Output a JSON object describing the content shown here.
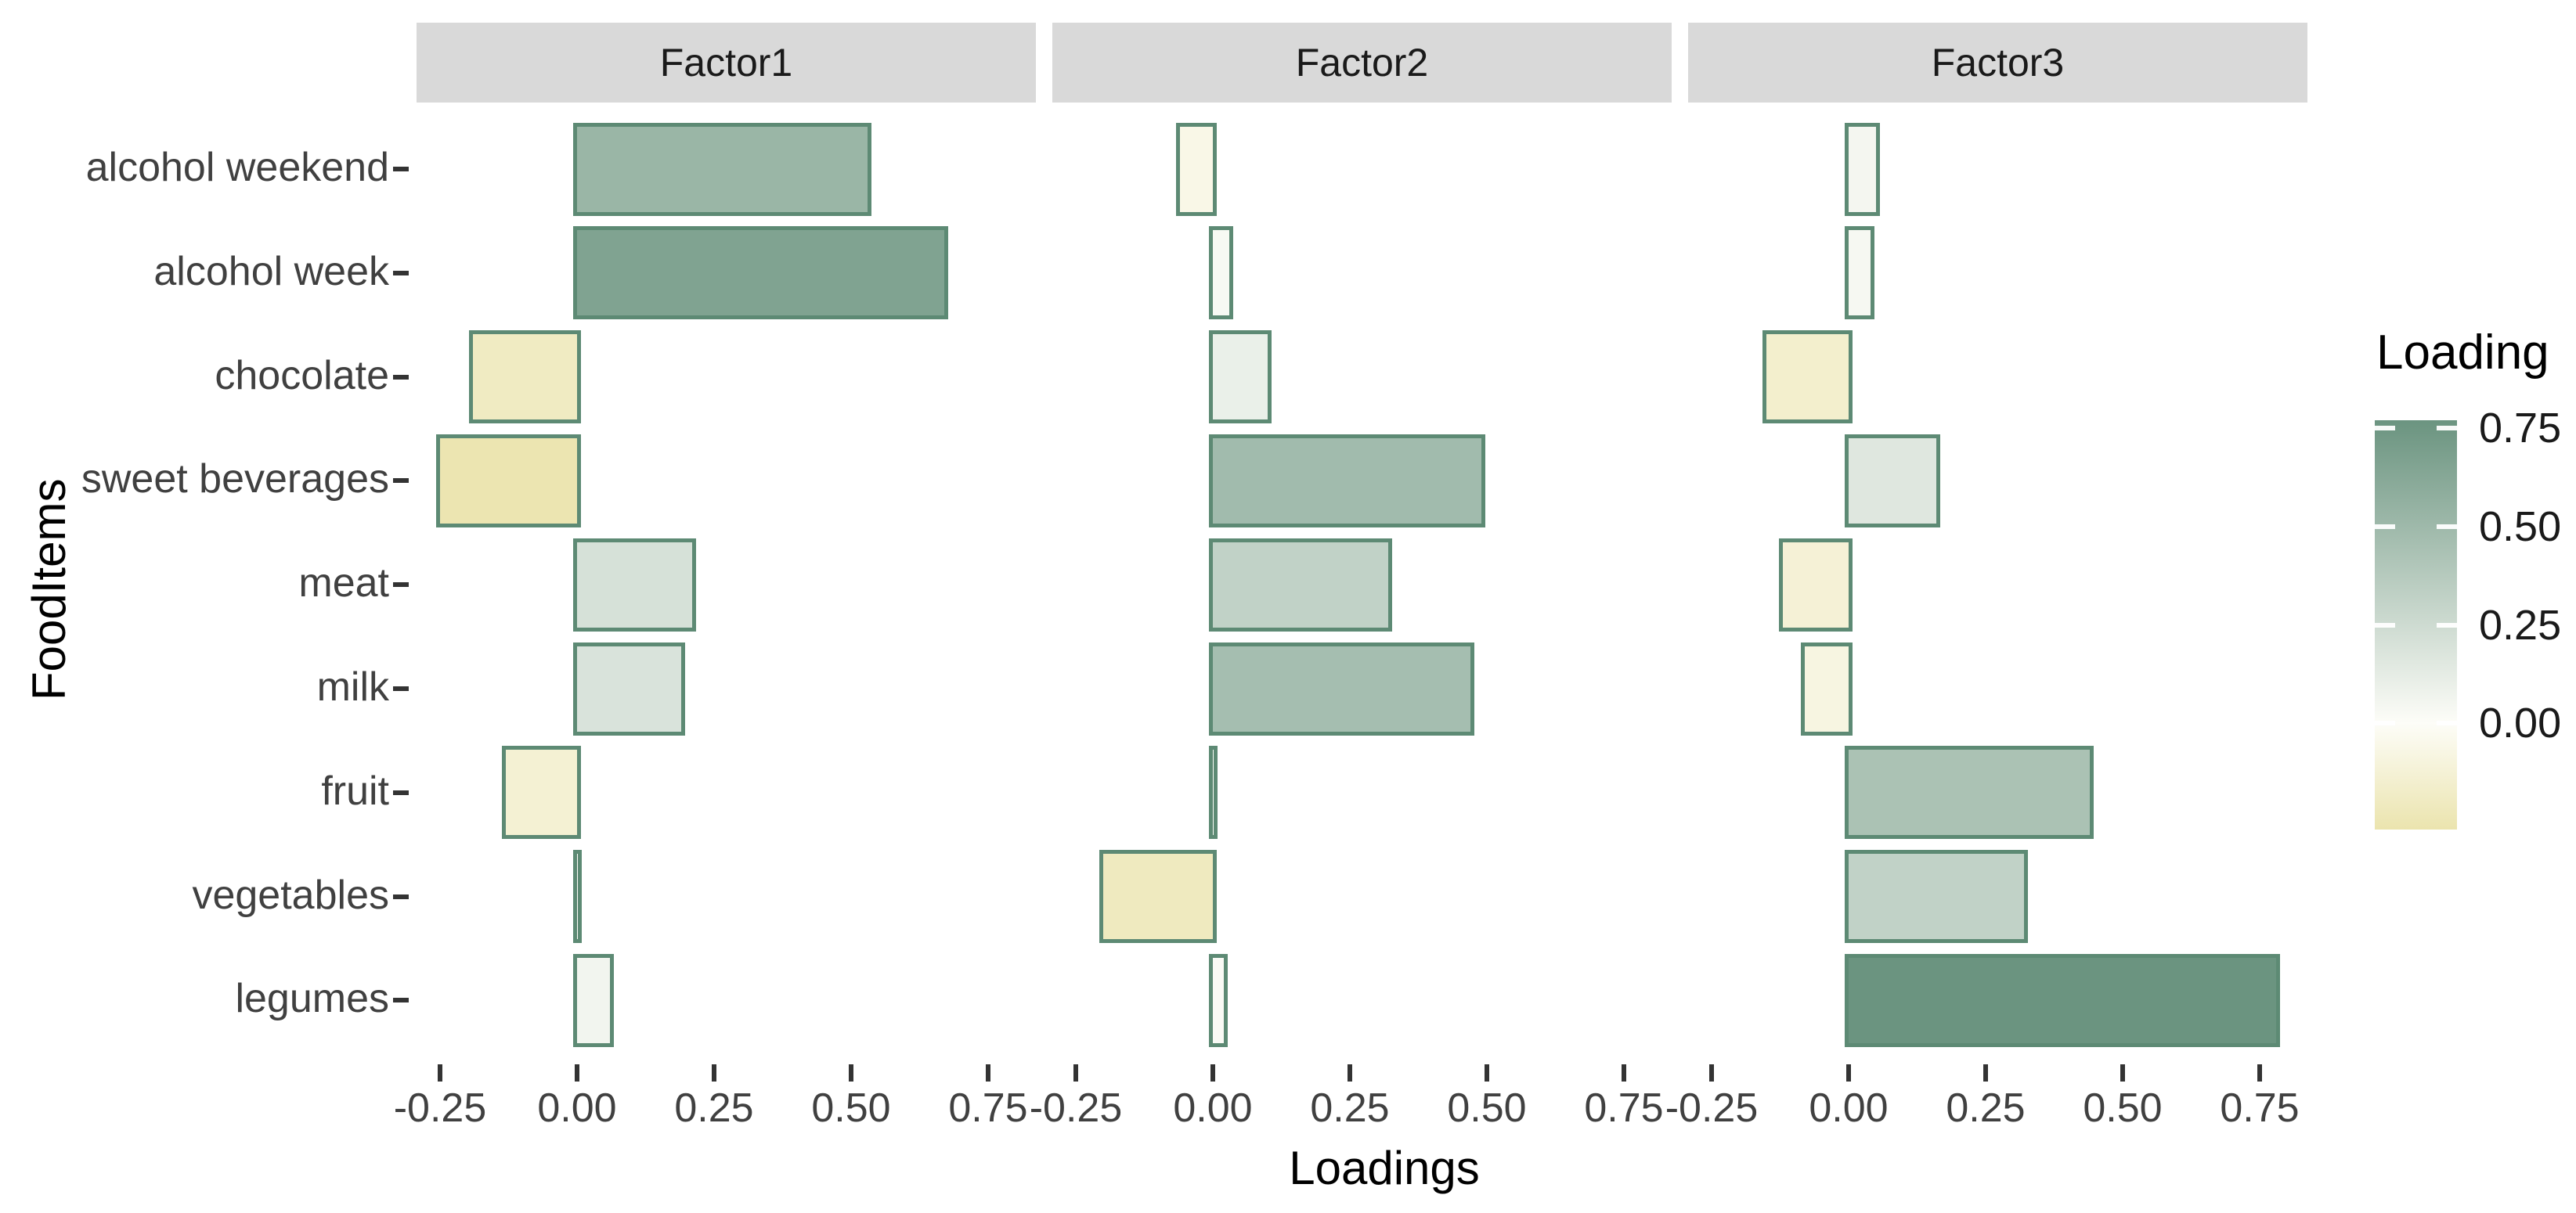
{
  "chart_data": {
    "type": "bar",
    "orientation": "horizontal",
    "title": "",
    "xlabel": "Loadings",
    "ylabel": "FoodItems",
    "legend_title": "Loading",
    "legend_position": "right",
    "grid": false,
    "facets": [
      "Factor1",
      "Factor2",
      "Factor3"
    ],
    "categories": [
      "alcohol weekend",
      "alcohol week",
      "chocolate",
      "sweet beverages",
      "meat",
      "milk",
      "fruit",
      "vegetables",
      "legumes"
    ],
    "series": [
      {
        "name": "Factor1",
        "values": [
          0.53,
          0.67,
          -0.19,
          -0.25,
          0.21,
          0.19,
          -0.13,
          0.0,
          0.06
        ]
      },
      {
        "name": "Factor2",
        "values": [
          -0.06,
          0.03,
          0.1,
          0.49,
          0.32,
          0.47,
          0.0,
          -0.2,
          0.02
        ]
      },
      {
        "name": "Factor3",
        "values": [
          0.05,
          0.04,
          -0.15,
          0.16,
          -0.12,
          -0.08,
          0.44,
          0.32,
          0.78
        ]
      }
    ],
    "x_ticks": [
      -0.25,
      0.0,
      0.25,
      0.5,
      0.75
    ],
    "x_tick_labels": [
      "-0.25",
      "0.00",
      "0.25",
      "0.50",
      "0.75"
    ],
    "xlim": [
      -0.293,
      0.837
    ],
    "legend_tick_labels": [
      "0.75",
      "0.50",
      "0.25",
      "0.00"
    ],
    "legend_tick_values": [
      0.75,
      0.5,
      0.25,
      0.0
    ],
    "colorbar_range": [
      -0.27,
      0.77
    ],
    "colors": {
      "gradient_low": "#EBE4AE",
      "gradient_mid": "#FDFDF8",
      "gradient_high": "#6B9480",
      "gradient_domain": [
        -0.26,
        0.0,
        0.78
      ],
      "bar_border": "#5D8A74",
      "strip_background": "#D9D9D9",
      "strip_text": "#1A1A1A",
      "tick_label_text": "#404040",
      "axis_title_text": "#000000",
      "tick_mark": "#333333"
    }
  }
}
